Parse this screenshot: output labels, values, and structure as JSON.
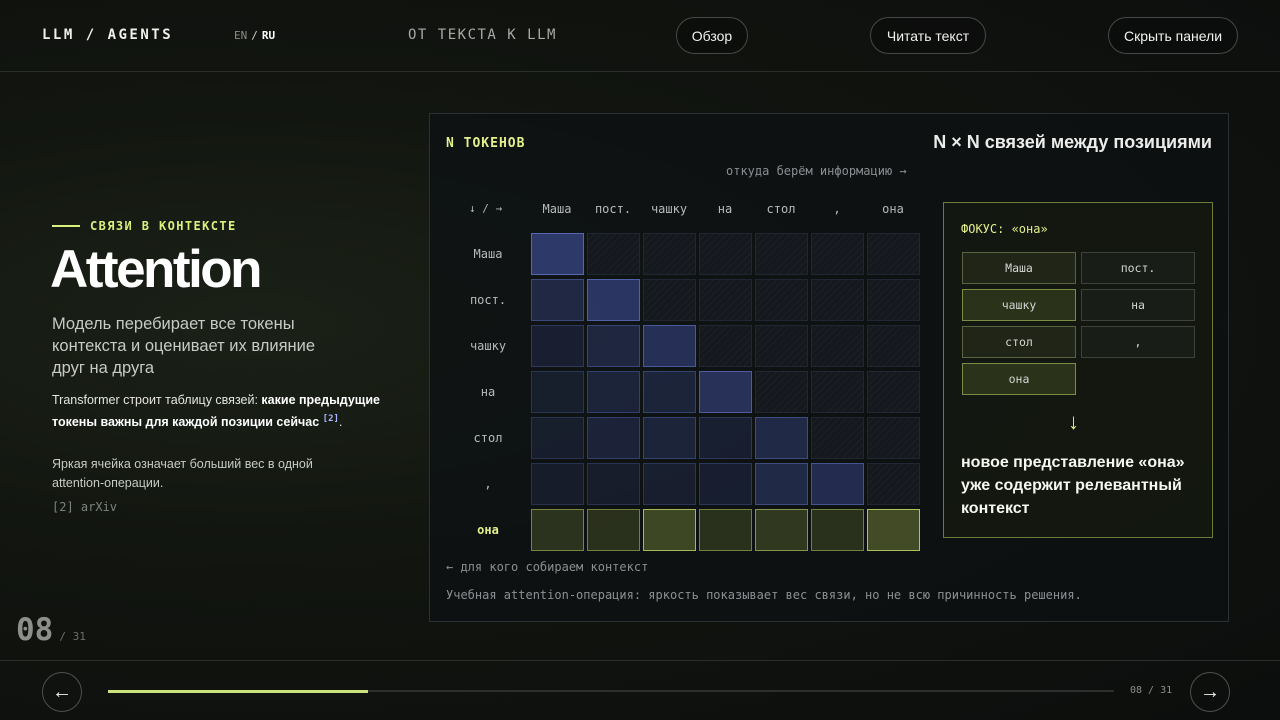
{
  "header": {
    "brand": "LLM / AGENTS",
    "lang_en": "EN",
    "lang_sep": "/",
    "lang_ru": "RU",
    "section": "ОТ ТЕКСТА К LLM",
    "overview_label": "Обзор",
    "read_label": "Читать текст",
    "hide_label": "Скрыть панели"
  },
  "left": {
    "kicker": "СВЯЗИ В КОНТЕКСТЕ",
    "title": "Attention",
    "lead": "Модель перебирает все токены контекста и оценивает их влияние друг на друга",
    "body1_plain": "Transformer строит таблицу связей: ",
    "body1_bold": "какие предыдущие токены важны для каждой позиции сейчас",
    "body1_ref": "[2]",
    "body1_end": ".",
    "body2": "Яркая ячейка означает больший вес в одной attention-операции.",
    "citation": "[2] arXiv",
    "slide_current": "08",
    "slide_total": "/ 31"
  },
  "panel": {
    "tag": "N ТОКЕНОВ",
    "title": "N × N связей между позициями",
    "hint_top": "откуда берём информацию →",
    "axis_corner": "↓ / →",
    "hint_bottom": "← для кого собираем контекст",
    "caption": "Учебная attention-операция: яркость показывает вес связи, но не всю причинность решения."
  },
  "attention": {
    "tokens": [
      "Маша",
      "пост.",
      "чашку",
      "на",
      "стол",
      ",",
      "она"
    ],
    "focus_row": 6,
    "weights": [
      [
        0.95
      ],
      [
        0.45,
        0.85
      ],
      [
        0.2,
        0.4,
        0.7
      ],
      [
        0.15,
        0.3,
        0.35,
        0.75
      ],
      [
        0.15,
        0.3,
        0.35,
        0.2,
        0.5
      ],
      [
        0.12,
        0.15,
        0.18,
        0.2,
        0.5,
        0.6
      ],
      [
        0.35,
        0.3,
        0.85,
        0.3,
        0.5,
        0.3,
        0.95
      ]
    ]
  },
  "focus": {
    "title": "ФОКУС: «она»",
    "tokens": [
      {
        "label": "Маша",
        "level": "mid"
      },
      {
        "label": "пост.",
        "level": "low"
      },
      {
        "label": "чашку",
        "level": "hi"
      },
      {
        "label": "на",
        "level": "low"
      },
      {
        "label": "стол",
        "level": "mid"
      },
      {
        "label": ",",
        "level": "low"
      },
      {
        "label": "она",
        "level": "hi"
      }
    ],
    "arrow": "↓",
    "result": "новое представление «она» уже содержит релевантный контекст"
  },
  "footer": {
    "prev_icon": "←",
    "next_icon": "→",
    "progress": 0.258,
    "counter": "08 / 31"
  },
  "colors": {
    "accent": "#d9f07c",
    "attention_blue": "#5b6fd4",
    "attention_focus": "#c4dc6a"
  }
}
